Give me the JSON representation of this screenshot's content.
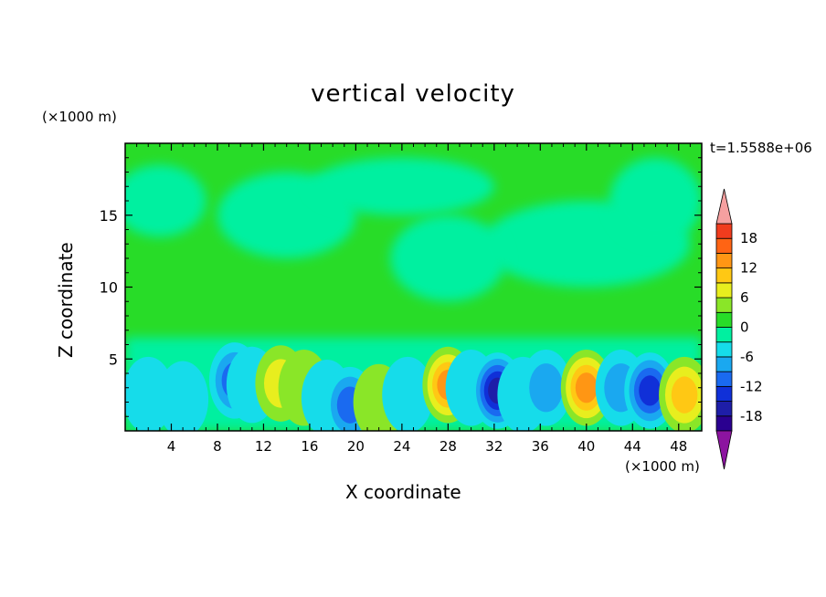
{
  "chart_data": {
    "type": "heatmap",
    "title": "vertical velocity",
    "xlabel": "X coordinate",
    "ylabel": "Z coordinate",
    "x_unit": "(×1000 m)",
    "y_unit": "(×1000 m)",
    "time_label": "t=1.5588e+06",
    "xlim": [
      0,
      50
    ],
    "ylim": [
      0,
      20
    ],
    "x_ticks": [
      4,
      8,
      12,
      16,
      20,
      24,
      28,
      32,
      36,
      40,
      44,
      48
    ],
    "y_ticks": [
      5,
      10,
      15
    ],
    "colorbar": {
      "levels": [
        -21,
        -18,
        -15,
        -12,
        -9,
        -6,
        -3,
        0,
        3,
        6,
        9,
        12,
        15,
        18,
        21
      ],
      "tick_labels": [
        "18",
        "12",
        "6",
        "0",
        "-6",
        "-12",
        "-18"
      ],
      "tick_values": [
        18,
        12,
        6,
        0,
        -6,
        -12,
        -18
      ],
      "colors": [
        "#2a0090",
        "#1e1ea8",
        "#1030d8",
        "#1a6af0",
        "#1aa8f0",
        "#16dcea",
        "#00f0a0",
        "#28dc28",
        "#8ae628",
        "#e8ee1e",
        "#ffc814",
        "#ff9614",
        "#ff6414",
        "#f03c1e"
      ],
      "extend_high_color": "#f5a0a0",
      "extend_low_color": "#8c14a0"
    },
    "field": {
      "cells": [
        {
          "x": 2,
          "z": 2.5,
          "value": -5
        },
        {
          "x": 5,
          "z": 2.2,
          "value": -5
        },
        {
          "x": 7,
          "z": 3.0,
          "value": 2
        },
        {
          "x": 9.5,
          "z": 3.5,
          "value": -11
        },
        {
          "x": 11,
          "z": 3.2,
          "value": -4
        },
        {
          "x": 13.5,
          "z": 3.3,
          "value": 8
        },
        {
          "x": 15.5,
          "z": 3.0,
          "value": 3
        },
        {
          "x": 17.5,
          "z": 2.3,
          "value": -5
        },
        {
          "x": 19.5,
          "z": 1.8,
          "value": -10
        },
        {
          "x": 22,
          "z": 2.0,
          "value": 5
        },
        {
          "x": 24.5,
          "z": 2.5,
          "value": -3
        },
        {
          "x": 28,
          "z": 3.2,
          "value": 12
        },
        {
          "x": 30,
          "z": 3.0,
          "value": -4
        },
        {
          "x": 32.3,
          "z": 2.8,
          "value": -15
        },
        {
          "x": 34.5,
          "z": 2.5,
          "value": -4
        },
        {
          "x": 36.5,
          "z": 3.0,
          "value": -8
        },
        {
          "x": 40,
          "z": 3.0,
          "value": 12
        },
        {
          "x": 43,
          "z": 3.0,
          "value": -6
        },
        {
          "x": 45.5,
          "z": 2.8,
          "value": -12
        },
        {
          "x": 48.5,
          "z": 2.5,
          "value": 10
        }
      ]
    }
  }
}
